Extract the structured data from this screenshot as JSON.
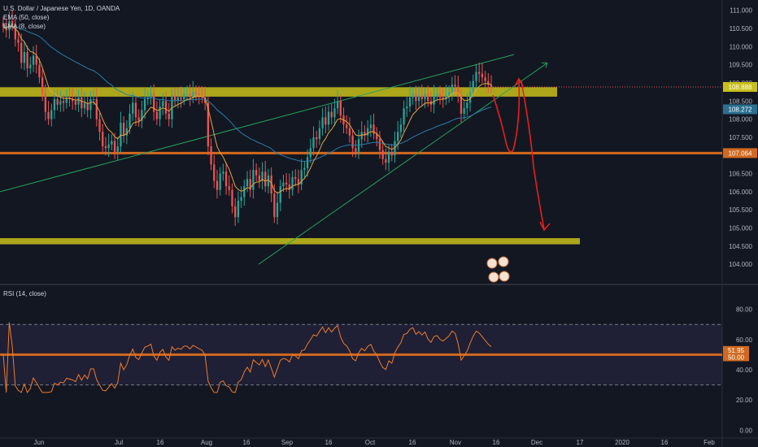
{
  "legend": {
    "symbol": "U.S. Dollar / Japanese Yen, 1D, OANDA",
    "ema1": "EMA (50, close)",
    "ema2": "EMA (8, close)",
    "rsi": "RSI (14, close)"
  },
  "chart_data": [
    {
      "type": "candlestick",
      "title": "U.S. Dollar / Japanese Yen, 1D, OANDA",
      "indicators": [
        "EMA (50, close)",
        "EMA (8, close)"
      ],
      "yticks": [
        "111.000",
        "110.500",
        "110.000",
        "109.500",
        "109.000",
        "108.500",
        "108.000",
        "107.500",
        "107.000",
        "106.500",
        "106.000",
        "105.500",
        "105.000",
        "104.500",
        "104.000"
      ],
      "ylim": [
        103.6,
        111.15
      ],
      "xticks": [
        "Jun",
        "Jul",
        "16",
        "Aug",
        "16",
        "Sep",
        "16",
        "Oct",
        "16",
        "Nov",
        "16",
        "Dec",
        "17",
        "2020",
        "16",
        "Feb"
      ],
      "price_labels": [
        {
          "text": "108.888",
          "value": 108.888,
          "color": "#c8c01a"
        },
        {
          "text": "108.272",
          "value": 108.272,
          "color": "#2a6f8f"
        },
        {
          "text": "107.064",
          "value": 107.064,
          "color": "#d1691f"
        }
      ],
      "zones": [
        {
          "low": 108.62,
          "high": 108.88,
          "color": "#c8c01a"
        },
        {
          "low": 104.55,
          "high": 104.72,
          "color": "#c8c01a"
        }
      ],
      "horizontal_lines": [
        {
          "value": 107.064,
          "color": "#d1691f"
        }
      ],
      "closes": [
        110.55,
        110.45,
        110.7,
        110.6,
        110.2,
        110.1,
        109.55,
        109.85,
        109.4,
        109.5,
        109.75,
        109.5,
        109.15,
        108.7,
        108.2,
        108.0,
        108.25,
        108.55,
        108.4,
        108.5,
        108.45,
        108.6,
        108.55,
        108.5,
        108.4,
        108.6,
        108.3,
        108.45,
        108.25,
        108.55,
        108.55,
        108.0,
        107.65,
        107.25,
        107.2,
        107.3,
        107.4,
        107.1,
        107.25,
        107.9,
        107.55,
        107.75,
        108.15,
        108.45,
        108.05,
        107.95,
        108.25,
        108.55,
        108.6,
        108.7,
        108.2,
        108.0,
        108.35,
        108.5,
        108.15,
        108.0,
        108.65,
        108.5,
        108.6,
        108.55,
        108.7,
        108.7,
        108.6,
        108.75,
        108.7,
        108.65,
        108.6,
        108.45,
        107.25,
        106.75,
        106.3,
        106.05,
        106.5,
        106.55,
        106.15,
        106.05,
        105.6,
        105.3,
        105.75,
        105.85,
        106.15,
        106.35,
        106.05,
        106.6,
        106.45,
        106.3,
        106.55,
        106.15,
        106.45,
        105.95,
        105.3,
        105.7,
        106.15,
        106.25,
        106.2,
        106.05,
        106.4,
        106.35,
        106.2,
        106.6,
        106.65,
        106.95,
        107.2,
        107.5,
        107.45,
        107.75,
        108.05,
        107.85,
        108.2,
        108.05,
        108.3,
        108.5,
        108.1,
        107.85,
        107.75,
        107.55,
        107.2,
        107.1,
        107.45,
        107.65,
        107.55,
        107.75,
        107.85,
        107.6,
        107.45,
        107.15,
        106.9,
        106.8,
        107.1,
        107.0,
        107.4,
        107.65,
        107.85,
        108.3,
        108.35,
        108.6,
        108.7,
        108.5,
        108.65,
        108.55,
        108.7,
        108.5,
        108.4,
        108.65,
        108.7,
        108.6,
        108.55,
        108.65,
        108.75,
        108.95,
        108.9,
        108.65,
        108.15,
        108.3,
        108.45,
        108.75,
        109.05,
        109.3,
        109.25,
        109.15,
        109.05,
        108.95,
        108.88
      ],
      "x_start_date": "2019-05-13",
      "x_end_date": "2019-11-19"
    },
    {
      "type": "line",
      "title": "RSI (14, close)",
      "yticks": [
        "80.00",
        "60.00",
        "40.00",
        "20.00",
        "0.00"
      ],
      "ylim": [
        -2,
        89
      ],
      "band": [
        30,
        70
      ],
      "price_labels": [
        {
          "text": "51.95",
          "value": 51.95,
          "color": "#d1691f"
        },
        {
          "text": "50.00",
          "value": 50.0,
          "color": "#d1691f"
        }
      ]
    }
  ],
  "colors": {
    "up": "#26a69a",
    "down": "#ef5350",
    "ema50": "#2b7ba8",
    "ema8": "#e7a33e",
    "rsi": "#ef7c2b",
    "zone": "#c8c01a",
    "orange": "#d1691f",
    "trend": "#26a15a",
    "drawing": "#e8201c",
    "bg": "#131722"
  }
}
